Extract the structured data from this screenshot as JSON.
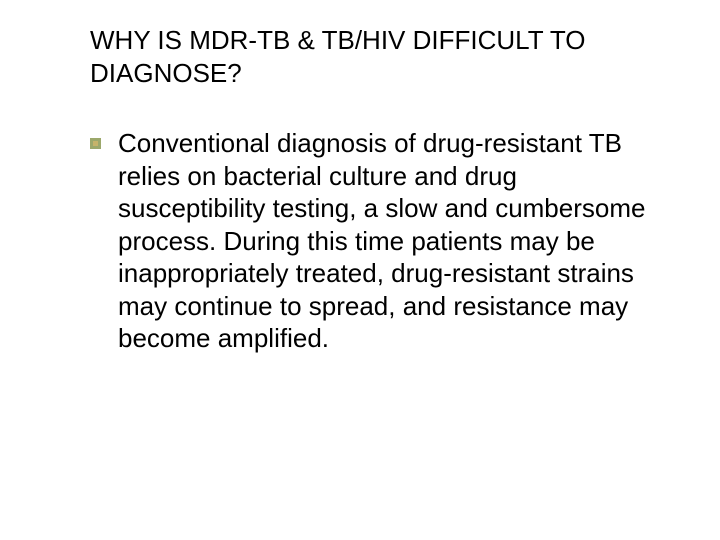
{
  "slide": {
    "title": "WHY IS MDR-TB & TB/HIV DIFFICULT TO DIAGNOSE?",
    "body": "Conventional diagnosis of drug-resistant TB relies on bacterial culture and drug susceptibility testing, a slow and cumbersome process. During this time patients may be inappropriately treated, drug-resistant strains may continue to spread, and resistance may become amplified.",
    "title_fontsize": 26,
    "body_fontsize": 26,
    "title_color": "#000000",
    "body_color": "#000000",
    "background_color": "#ffffff",
    "bullet": {
      "outer_color": "#9ca86b",
      "inner_color": "#c6b36a",
      "outer_size": 11,
      "inner_size": 5
    },
    "font_family": "Verdana"
  }
}
